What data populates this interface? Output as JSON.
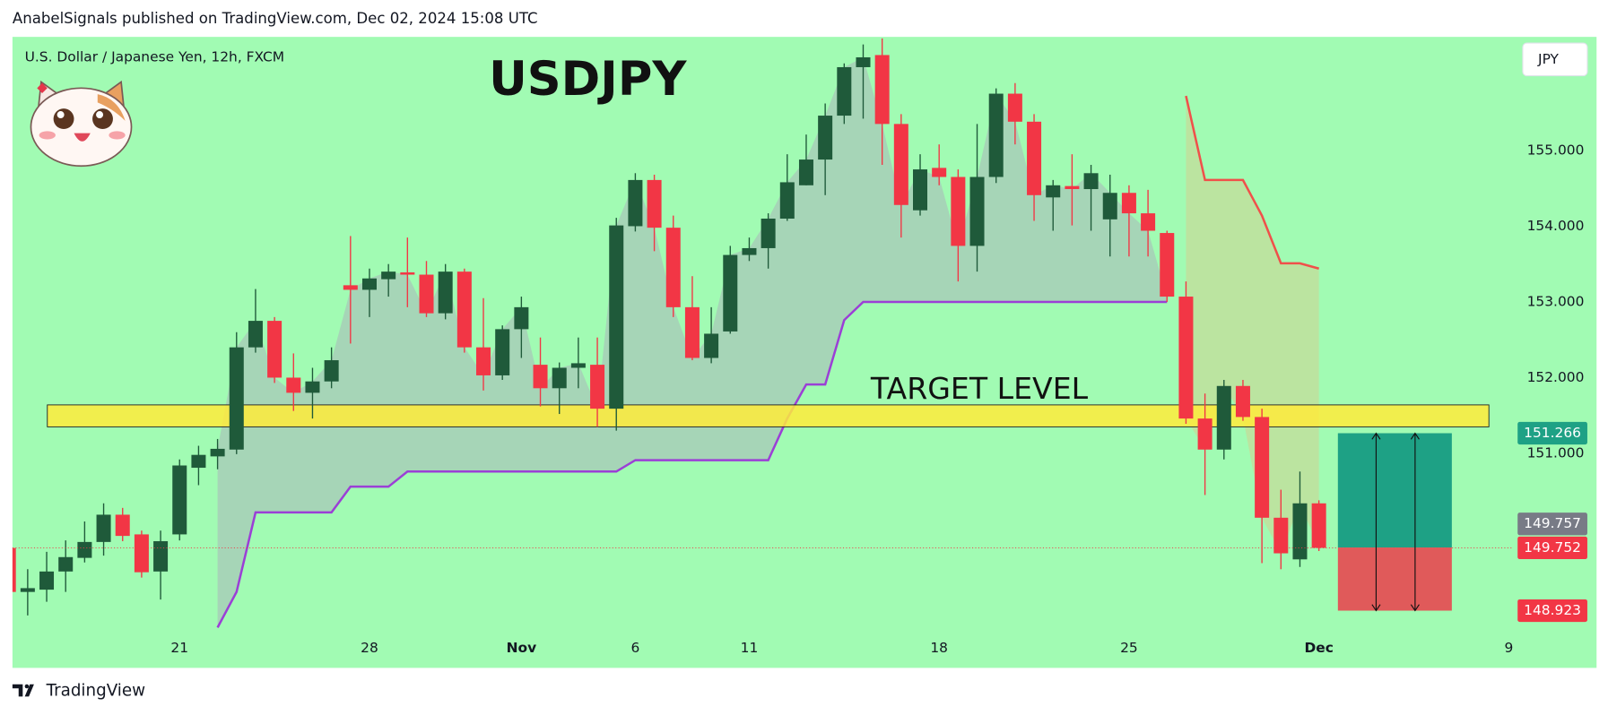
{
  "header": {
    "text": "AnabelSignals published on TradingView.com, Dec 02, 2024 15:08 UTC"
  },
  "chart_data": {
    "type": "candlestick",
    "title": "USDJPY",
    "subtitle": "U.S. Dollar / Japanese Yen, 12h, FXCM",
    "currency": "JPY",
    "categories": [
      null,
      null,
      null,
      null,
      null,
      null,
      null,
      null,
      null,
      "21",
      null,
      null,
      null,
      null,
      null,
      null,
      null,
      null,
      null,
      "28",
      null,
      null,
      null,
      null,
      null,
      null,
      null,
      "Nov",
      null,
      null,
      null,
      null,
      null,
      "6",
      null,
      null,
      null,
      null,
      null,
      "11",
      null,
      null,
      null,
      null,
      null,
      null,
      null,
      null,
      null,
      "18",
      null,
      null,
      null,
      null,
      null,
      null,
      null,
      null,
      null,
      "25",
      null,
      null,
      null,
      null,
      null,
      null,
      null,
      null,
      null,
      "Dec",
      null,
      null,
      null,
      null,
      null,
      null,
      null,
      null,
      null,
      "9"
    ],
    "open": [
      149.75,
      149.17,
      149.2,
      149.44,
      149.62,
      149.83,
      150.19,
      149.93,
      149.44,
      149.93,
      150.81,
      150.96,
      151.05,
      152.4,
      152.75,
      152.0,
      151.8,
      151.95,
      153.22,
      153.16,
      153.3,
      153.39,
      153.36,
      152.85,
      153.4,
      152.4,
      152.03,
      152.64,
      152.17,
      151.86,
      152.13,
      152.17,
      151.59,
      154.0,
      154.61,
      153.98,
      152.93,
      152.26,
      152.61,
      153.62,
      153.71,
      154.1,
      154.54,
      154.88,
      155.46,
      156.1,
      156.26,
      155.35,
      154.21,
      154.77,
      154.65,
      153.74,
      154.65,
      155.75,
      155.38,
      154.38,
      154.53,
      154.49,
      154.09,
      154.44,
      154.17,
      153.91,
      153.07,
      151.46,
      151.05,
      151.89,
      151.48,
      150.15,
      149.6,
      150.34,
      null,
      null,
      null,
      null,
      null,
      null,
      null,
      null,
      null,
      null
    ],
    "high": [
      149.78,
      149.47,
      149.7,
      149.85,
      150.1,
      150.34,
      150.28,
      149.98,
      149.98,
      150.92,
      151.1,
      151.19,
      152.6,
      153.17,
      152.8,
      152.32,
      152.13,
      152.4,
      153.87,
      153.44,
      153.5,
      153.85,
      153.54,
      153.5,
      153.44,
      153.05,
      152.69,
      153.07,
      152.53,
      152.2,
      152.53,
      152.53,
      154.11,
      154.7,
      154.68,
      154.14,
      153.34,
      152.93,
      153.74,
      153.85,
      154.17,
      154.95,
      155.21,
      155.62,
      156.15,
      156.4,
      156.48,
      155.48,
      154.95,
      155.08,
      154.75,
      155.35,
      155.82,
      155.89,
      155.48,
      154.61,
      154.95,
      154.81,
      154.68,
      154.54,
      154.48,
      153.94,
      153.27,
      151.79,
      151.97,
      151.97,
      151.59,
      150.52,
      150.76,
      150.38,
      null,
      null,
      null,
      null,
      null,
      null,
      null,
      null,
      null,
      null
    ],
    "low": [
      149.1,
      148.86,
      149.04,
      149.17,
      149.56,
      149.65,
      149.84,
      149.36,
      149.07,
      149.85,
      150.58,
      150.79,
      150.99,
      152.33,
      151.93,
      151.56,
      151.46,
      151.86,
      152.45,
      152.8,
      153.07,
      152.93,
      152.8,
      152.77,
      152.33,
      151.83,
      151.97,
      152.26,
      151.62,
      151.52,
      151.86,
      151.35,
      151.3,
      153.93,
      153.67,
      152.8,
      152.23,
      152.19,
      152.58,
      153.54,
      153.44,
      154.07,
      154.54,
      154.41,
      155.35,
      155.42,
      154.81,
      153.85,
      154.14,
      154.54,
      153.27,
      153.4,
      154.57,
      155.08,
      154.07,
      153.94,
      154.01,
      153.94,
      153.6,
      153.6,
      153.6,
      153.0,
      151.39,
      150.45,
      150.92,
      151.43,
      149.55,
      149.47,
      149.5,
      149.71,
      null,
      null,
      null,
      null,
      null,
      null,
      null,
      null,
      null,
      null
    ],
    "close": [
      149.17,
      149.22,
      149.44,
      149.63,
      149.83,
      150.19,
      149.91,
      149.43,
      149.84,
      150.84,
      150.98,
      151.06,
      152.4,
      152.75,
      152.0,
      151.8,
      151.95,
      152.23,
      153.16,
      153.31,
      153.4,
      153.36,
      152.85,
      153.4,
      152.4,
      152.03,
      152.64,
      152.93,
      151.86,
      152.13,
      152.19,
      151.59,
      154.01,
      154.61,
      153.98,
      152.93,
      152.26,
      152.58,
      153.62,
      153.71,
      154.1,
      154.58,
      154.88,
      155.46,
      156.1,
      156.23,
      155.35,
      154.28,
      154.75,
      154.65,
      153.74,
      154.65,
      155.75,
      155.38,
      154.41,
      154.54,
      154.49,
      154.7,
      154.44,
      154.17,
      153.94,
      153.07,
      151.46,
      151.05,
      151.89,
      151.48,
      150.15,
      149.68,
      150.34,
      149.752,
      null,
      null,
      null,
      null,
      null,
      null,
      null,
      null,
      null,
      null
    ],
    "up_color": "#1f5a3a",
    "down_color": "#f23645",
    "lines": [
      {
        "color": "#9b3fd6",
        "fill": "#a8c8b8",
        "values": [
          null,
          null,
          null,
          null,
          null,
          null,
          null,
          null,
          null,
          null,
          null,
          148.7,
          149.17,
          150.22,
          150.22,
          150.22,
          150.22,
          150.22,
          150.56,
          150.56,
          150.56,
          150.76,
          150.76,
          150.76,
          150.76,
          150.76,
          150.76,
          150.76,
          150.76,
          150.76,
          150.76,
          150.76,
          150.76,
          150.91,
          150.91,
          150.91,
          150.91,
          150.91,
          150.91,
          150.91,
          150.91,
          151.46,
          151.91,
          151.91,
          152.76,
          153.0,
          153.0,
          153.0,
          153.0,
          153.0,
          153.0,
          153.0,
          153.0,
          153.0,
          153.0,
          153.0,
          153.0,
          153.0,
          153.0,
          153.0,
          153.0,
          153.0,
          null,
          null,
          null,
          null,
          null,
          null,
          null,
          null,
          null,
          null,
          null,
          null,
          null,
          null,
          null,
          null,
          null,
          null
        ]
      },
      {
        "color": "#f0504a",
        "fill": "#c4dc9a",
        "values": [
          null,
          null,
          null,
          null,
          null,
          null,
          null,
          null,
          null,
          null,
          null,
          null,
          null,
          null,
          null,
          null,
          null,
          null,
          null,
          null,
          null,
          null,
          null,
          null,
          null,
          null,
          null,
          null,
          null,
          null,
          null,
          null,
          null,
          null,
          null,
          null,
          null,
          null,
          null,
          null,
          null,
          null,
          null,
          null,
          null,
          null,
          null,
          null,
          null,
          null,
          null,
          null,
          null,
          null,
          null,
          null,
          null,
          null,
          null,
          null,
          null,
          null,
          155.72,
          154.61,
          154.61,
          154.61,
          154.14,
          153.51,
          153.51,
          153.44,
          null,
          null,
          null,
          null,
          null,
          null,
          null,
          null,
          null,
          null
        ]
      }
    ],
    "ylim": [
      148.6,
      156.5
    ],
    "yticks": [
      {
        "value": 151,
        "label": "151.000"
      },
      {
        "value": 152,
        "label": "152.000"
      },
      {
        "value": 153,
        "label": "153.000"
      },
      {
        "value": 154,
        "label": "154.000"
      },
      {
        "value": 155,
        "label": "155.000"
      }
    ],
    "target_level": {
      "label": "TARGET LEVEL",
      "range": [
        151.35,
        151.64
      ],
      "color": "#ffeb3b"
    },
    "position": {
      "target": 151.266,
      "entry": 149.757,
      "stop": 148.923,
      "profit_color": "#1ea185",
      "loss_color": "#e05a5a",
      "entry_color": "#787b86"
    }
  },
  "footer": {
    "brand": "TradingView"
  }
}
